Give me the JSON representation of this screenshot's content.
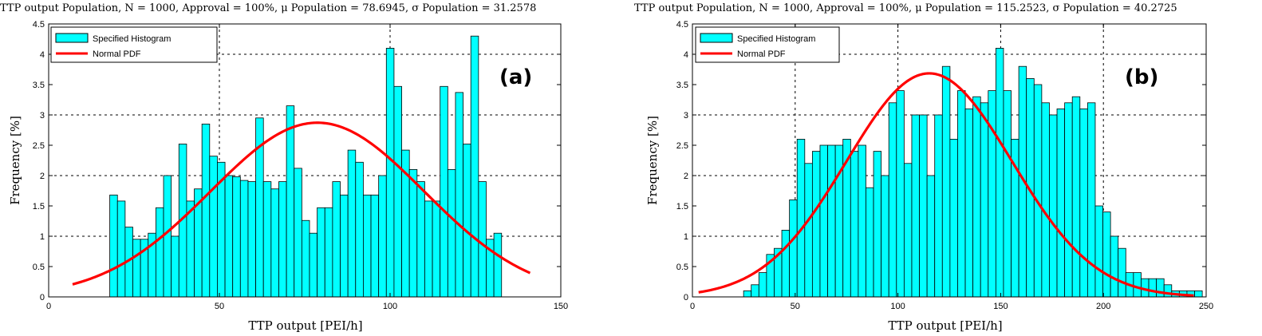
{
  "chart_data": [
    {
      "type": "bar",
      "title": "TTP output Population, N = 1000, Approval = 100%, μ Population = 78.6945, σ Population = 31.2578",
      "xlabel": "TTP output [PEI/h]",
      "ylabel": "Frequency [%]",
      "panel_label": "(a)",
      "xlim": [
        0,
        150
      ],
      "ylim": [
        0,
        4.5
      ],
      "xticks": [
        "0",
        "50",
        "100",
        "150"
      ],
      "yticks": [
        "0",
        "0.5",
        "1",
        "1.5",
        "2",
        "2.5",
        "3",
        "3.5",
        "4",
        "4.5"
      ],
      "grid": true,
      "legend_position": "top-left",
      "bin_start": 17.9,
      "bin_width": 2.25,
      "values": [
        1.68,
        1.58,
        1.15,
        0.95,
        0.95,
        1.05,
        1.47,
        2.0,
        1.0,
        2.52,
        1.58,
        1.78,
        2.85,
        2.32,
        2.22,
        2.0,
        1.98,
        1.92,
        1.9,
        2.95,
        1.9,
        1.78,
        1.9,
        3.15,
        2.12,
        1.26,
        1.05,
        1.47,
        1.47,
        1.9,
        1.68,
        2.42,
        2.22,
        1.68,
        1.68,
        2.0,
        4.1,
        3.47,
        2.42,
        2.1,
        1.9,
        1.58,
        1.58,
        3.47,
        2.1,
        3.37,
        2.52,
        4.3,
        1.9,
        0.95,
        1.05
      ],
      "series": [
        {
          "name": "Specified Histogram",
          "color": "#00FFFF"
        },
        {
          "name": "Normal PDF",
          "color": "#FF0000",
          "mu": 78.6945,
          "sigma": 31.2578,
          "x_range": [
            7,
            141
          ]
        }
      ]
    },
    {
      "type": "bar",
      "title": "TTP output Population, N = 1000, Approval = 100%, μ Population = 115.2523, σ Population = 40.2725",
      "xlabel": "TTP output [PEI/h]",
      "ylabel": "Frequency [%]",
      "panel_label": "(b)",
      "xlim": [
        0,
        250
      ],
      "ylim": [
        0,
        4.5
      ],
      "xticks": [
        "0",
        "50",
        "100",
        "150",
        "200",
        "250"
      ],
      "yticks": [
        "0",
        "0.5",
        "1",
        "1.5",
        "2",
        "2.5",
        "3",
        "3.5",
        "4",
        "4.5"
      ],
      "grid": true,
      "legend_position": "top-left",
      "bin_start": 24.9,
      "bin_width": 3.72,
      "values": [
        0.1,
        0.2,
        0.4,
        0.7,
        0.8,
        1.1,
        1.6,
        2.6,
        2.2,
        2.4,
        2.5,
        2.5,
        2.5,
        2.6,
        2.4,
        2.5,
        1.8,
        2.4,
        2.0,
        3.2,
        3.4,
        2.2,
        3.0,
        3.0,
        2.0,
        3.0,
        3.8,
        2.6,
        3.4,
        3.1,
        3.3,
        3.2,
        3.4,
        4.1,
        3.4,
        2.6,
        3.8,
        3.6,
        3.5,
        3.2,
        3.0,
        3.1,
        3.2,
        3.3,
        3.1,
        3.2,
        1.5,
        1.4,
        1.0,
        0.8,
        0.4,
        0.4,
        0.3,
        0.3,
        0.3,
        0.2,
        0.1,
        0.1,
        0.1,
        0.1
      ],
      "series": [
        {
          "name": "Specified Histogram",
          "color": "#00FFFF"
        },
        {
          "name": "Normal PDF",
          "color": "#FF0000",
          "mu": 115.2523,
          "sigma": 40.2725,
          "x_range": [
            3,
            244
          ]
        }
      ]
    }
  ]
}
